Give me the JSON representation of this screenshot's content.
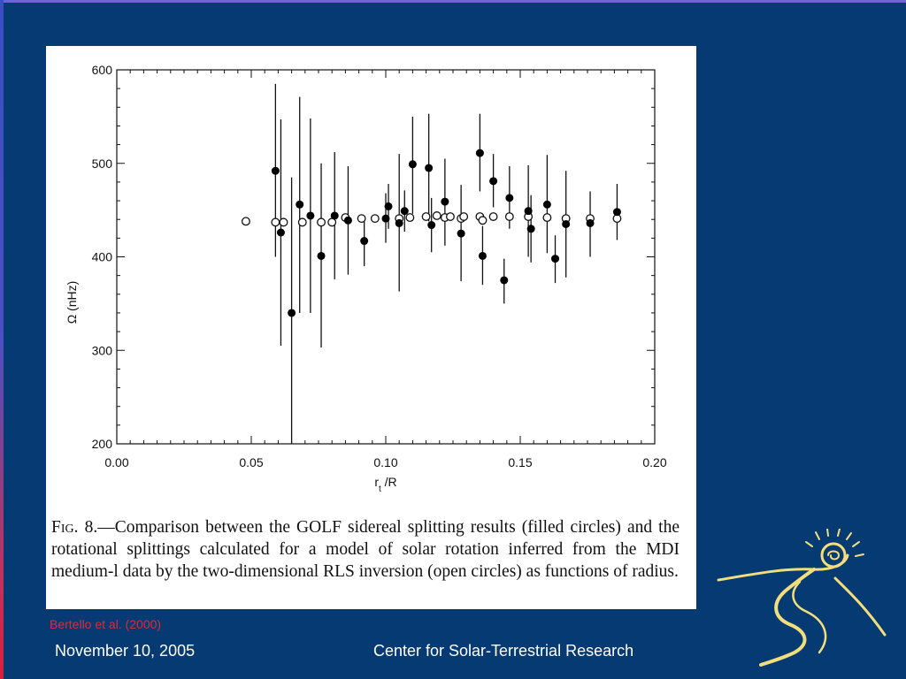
{
  "figure": {
    "caption": {
      "fig_label": "Fig. 8.",
      "lines": [
        "—Comparison between the GOLF sidereal splitting results",
        "(filled circles) and the rotational splittings calculated for a model of solar",
        "rotation inferred from the MDI medium-l data by the two-dimensional",
        "RLS inversion (open circles) as functions of radius."
      ]
    }
  },
  "citation": "Bertello et al. (2000)",
  "footer": {
    "date": "November 10, 2005",
    "center": "Center for Solar-Terrestrial Research"
  },
  "chart_data": {
    "type": "scatter",
    "title": "",
    "xlabel": "r_t /R",
    "ylabel": "Ω (nHz)",
    "xlim": [
      0.0,
      0.2
    ],
    "ylim": [
      200,
      600
    ],
    "x_ticks": [
      "0.00",
      "0.05",
      "0.10",
      "0.15",
      "0.20"
    ],
    "y_ticks": [
      "200",
      "300",
      "400",
      "500",
      "600"
    ],
    "grid": false,
    "series": [
      {
        "name": "filled circles",
        "marker": "filled-circle",
        "points": [
          {
            "x": 0.059,
            "y": 492,
            "lo": 400,
            "hi": 585
          },
          {
            "x": 0.061,
            "y": 426,
            "lo": 305,
            "hi": 547
          },
          {
            "x": 0.065,
            "y": 340,
            "lo": 195,
            "hi": 485
          },
          {
            "x": 0.068,
            "y": 456,
            "lo": 340,
            "hi": 571
          },
          {
            "x": 0.072,
            "y": 444,
            "lo": 340,
            "hi": 548
          },
          {
            "x": 0.076,
            "y": 401,
            "lo": 303,
            "hi": 500
          },
          {
            "x": 0.081,
            "y": 444,
            "lo": 376,
            "hi": 512
          },
          {
            "x": 0.086,
            "y": 439,
            "lo": 381,
            "hi": 497
          },
          {
            "x": 0.092,
            "y": 417,
            "lo": 390,
            "hi": 444
          },
          {
            "x": 0.1,
            "y": 441,
            "lo": 415,
            "hi": 468
          },
          {
            "x": 0.101,
            "y": 454,
            "lo": 430,
            "hi": 478
          },
          {
            "x": 0.105,
            "y": 436,
            "lo": 363,
            "hi": 510
          },
          {
            "x": 0.107,
            "y": 449,
            "lo": 427,
            "hi": 471
          },
          {
            "x": 0.11,
            "y": 499,
            "lo": 446,
            "hi": 550
          },
          {
            "x": 0.116,
            "y": 495,
            "lo": 438,
            "hi": 553
          },
          {
            "x": 0.117,
            "y": 434,
            "lo": 405,
            "hi": 463
          },
          {
            "x": 0.122,
            "y": 459,
            "lo": 412,
            "hi": 505
          },
          {
            "x": 0.128,
            "y": 425,
            "lo": 374,
            "hi": 477
          },
          {
            "x": 0.135,
            "y": 511,
            "lo": 470,
            "hi": 553
          },
          {
            "x": 0.136,
            "y": 401,
            "lo": 370,
            "hi": 433
          },
          {
            "x": 0.14,
            "y": 481,
            "lo": 453,
            "hi": 510
          },
          {
            "x": 0.144,
            "y": 375,
            "lo": 350,
            "hi": 398
          },
          {
            "x": 0.146,
            "y": 463,
            "lo": 430,
            "hi": 497
          },
          {
            "x": 0.153,
            "y": 449,
            "lo": 400,
            "hi": 498
          },
          {
            "x": 0.154,
            "y": 430,
            "lo": 394,
            "hi": 466
          },
          {
            "x": 0.16,
            "y": 456,
            "lo": 404,
            "hi": 509
          },
          {
            "x": 0.163,
            "y": 398,
            "lo": 372,
            "hi": 423
          },
          {
            "x": 0.167,
            "y": 435,
            "lo": 378,
            "hi": 492
          },
          {
            "x": 0.176,
            "y": 436,
            "lo": 400,
            "hi": 470
          },
          {
            "x": 0.186,
            "y": 448,
            "lo": 418,
            "hi": 478
          }
        ]
      },
      {
        "name": "open circles",
        "marker": "open-circle",
        "points": [
          {
            "x": 0.048,
            "y": 438
          },
          {
            "x": 0.059,
            "y": 437
          },
          {
            "x": 0.062,
            "y": 437
          },
          {
            "x": 0.069,
            "y": 437
          },
          {
            "x": 0.076,
            "y": 437
          },
          {
            "x": 0.08,
            "y": 437
          },
          {
            "x": 0.085,
            "y": 442
          },
          {
            "x": 0.091,
            "y": 441
          },
          {
            "x": 0.096,
            "y": 441
          },
          {
            "x": 0.105,
            "y": 441
          },
          {
            "x": 0.109,
            "y": 442
          },
          {
            "x": 0.115,
            "y": 443
          },
          {
            "x": 0.119,
            "y": 444
          },
          {
            "x": 0.122,
            "y": 442
          },
          {
            "x": 0.124,
            "y": 443
          },
          {
            "x": 0.128,
            "y": 441
          },
          {
            "x": 0.129,
            "y": 443
          },
          {
            "x": 0.135,
            "y": 443
          },
          {
            "x": 0.136,
            "y": 439
          },
          {
            "x": 0.14,
            "y": 443
          },
          {
            "x": 0.146,
            "y": 443
          },
          {
            "x": 0.153,
            "y": 443
          },
          {
            "x": 0.16,
            "y": 442
          },
          {
            "x": 0.167,
            "y": 441
          },
          {
            "x": 0.176,
            "y": 441
          },
          {
            "x": 0.186,
            "y": 441
          }
        ]
      }
    ]
  }
}
